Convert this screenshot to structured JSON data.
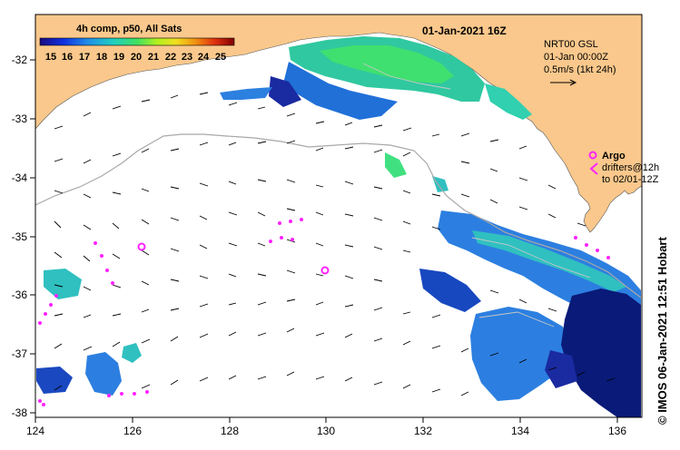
{
  "map": {
    "title": "01-Jan-2021 16Z",
    "composite_label": "4h comp, p50, All Sats",
    "colorbar_ticks": [
      "15",
      "16",
      "17",
      "18",
      "19",
      "20",
      "21",
      "22",
      "23",
      "24",
      "25"
    ],
    "colorbar_range_degC": [
      15,
      25
    ],
    "current_info": {
      "source": "NRT00 GSL",
      "time": "01-Jan 00:00Z",
      "scale": "0.5m/s (1kt 24h)"
    },
    "argo_legend": {
      "title": "Argo",
      "line1": "drifters@12h",
      "line2": "to 02/01-12Z"
    },
    "credit": "© IMOS 06-Jan-2021 12:51 Hobart",
    "x_ticks": [
      "124",
      "126",
      "128",
      "130",
      "132",
      "134",
      "136"
    ],
    "y_ticks": [
      "-32",
      "-33",
      "-34",
      "-35",
      "-36",
      "-37",
      "-38"
    ],
    "colors": {
      "land": "#fac88c",
      "argo": "#ff22ff",
      "arrow": "#000000",
      "bathymetry": "#a8a8a8"
    }
  }
}
